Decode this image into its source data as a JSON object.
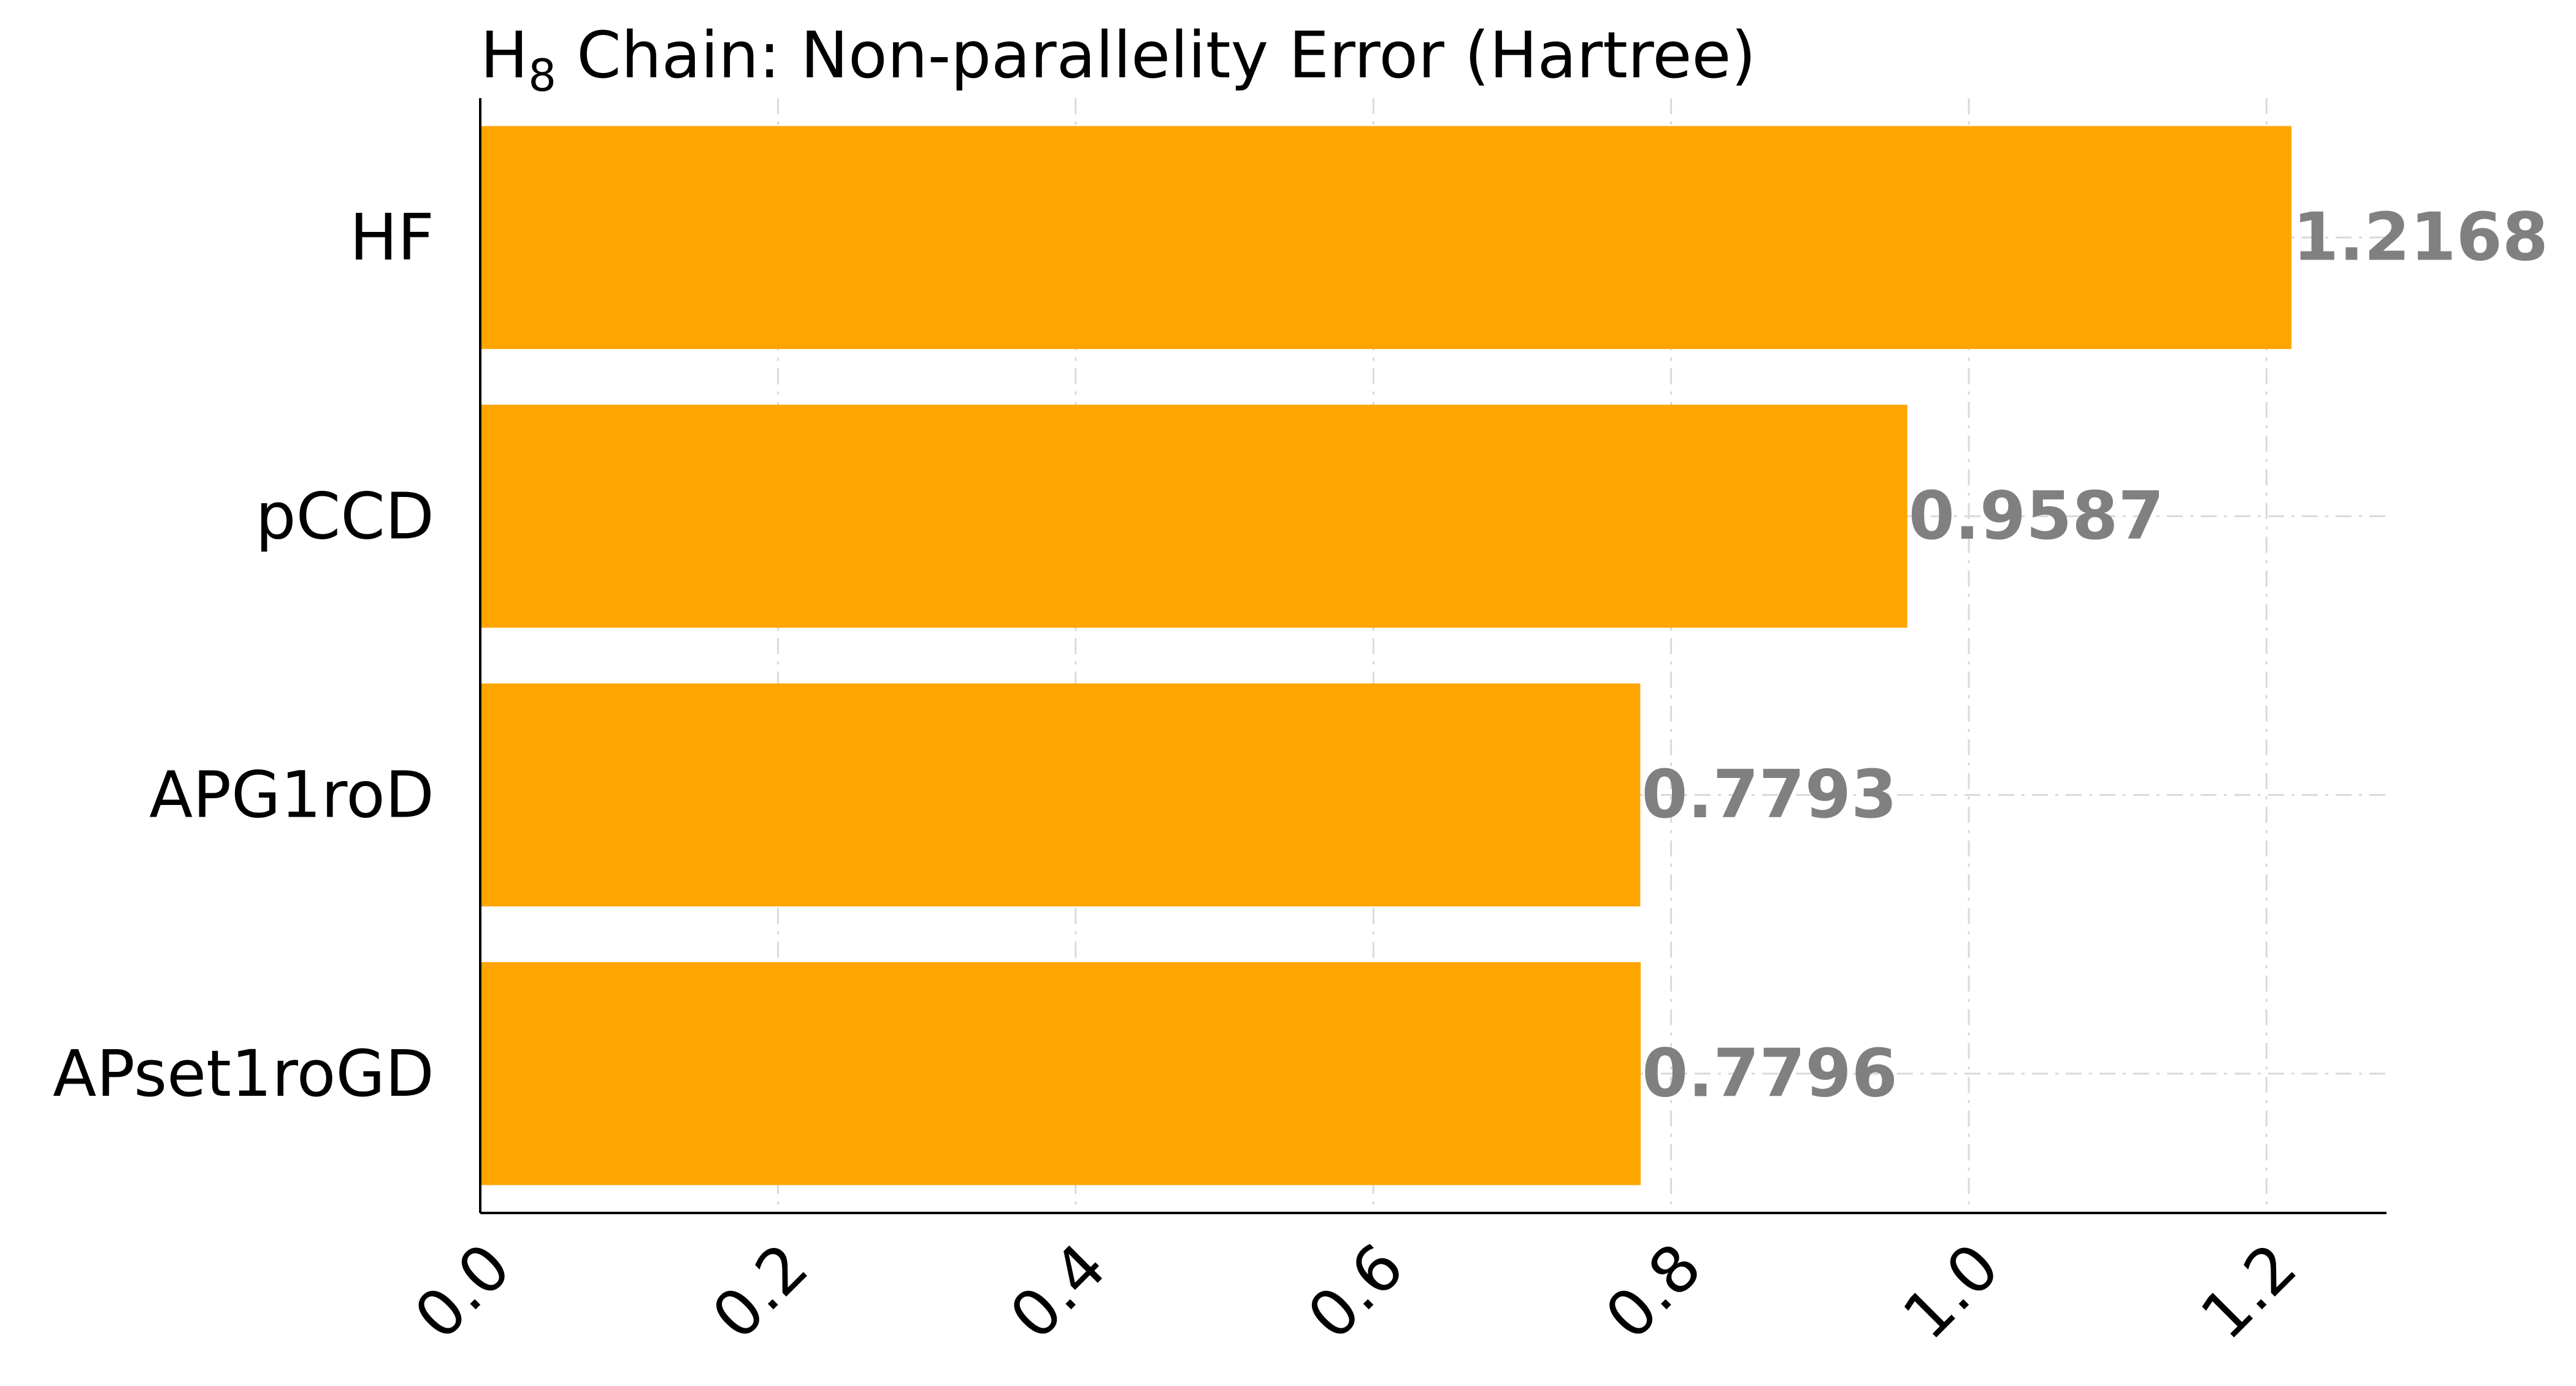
{
  "chart_data": {
    "type": "bar",
    "orientation": "horizontal",
    "title": {
      "main": "H",
      "subscript": "8",
      "rest": " Chain: Non-parallelity Error (Hartree)"
    },
    "categories": [
      "HF",
      "pCCD",
      "APG1roD",
      "APset1roGD"
    ],
    "values": [
      1.2168,
      0.9587,
      0.7793,
      0.7796
    ],
    "value_labels": [
      "1.2168",
      "0.9587",
      "0.7793",
      "0.7796"
    ],
    "xlim": [
      0,
      1.28
    ],
    "xticks": [
      0.0,
      0.2,
      0.4,
      0.6,
      0.8,
      1.0,
      1.2
    ],
    "xtick_labels": [
      "0.0",
      "0.2",
      "0.4",
      "0.6",
      "0.8",
      "1.0",
      "1.2"
    ],
    "xlabel": "",
    "ylabel": "",
    "grid": true,
    "legend": "none",
    "colors": {
      "bar": "#FFA500",
      "value_label": "#808080",
      "grid": "#d9d9d9",
      "axis": "#000000"
    }
  }
}
